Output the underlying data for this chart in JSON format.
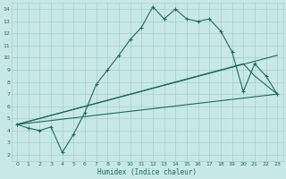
{
  "background_color": "#c8e8e8",
  "grid_color": "#a8cccc",
  "line_color": "#1a6b5a",
  "marker": "+",
  "xlabel": "Humidex (Indice chaleur)",
  "xlim": [
    -0.5,
    23.5
  ],
  "ylim": [
    1.5,
    14.5
  ],
  "yticks": [
    2,
    3,
    4,
    5,
    6,
    7,
    8,
    9,
    10,
    11,
    12,
    13,
    14
  ],
  "xticks": [
    0,
    1,
    2,
    3,
    4,
    5,
    6,
    7,
    8,
    9,
    10,
    11,
    12,
    13,
    14,
    15,
    16,
    17,
    18,
    19,
    20,
    21,
    22,
    23
  ],
  "line1_x": [
    0,
    1,
    2,
    3,
    4,
    5,
    6,
    7,
    8,
    9,
    10,
    11,
    12,
    13,
    14,
    15,
    16,
    17,
    18,
    19,
    20,
    21,
    22,
    23
  ],
  "line1_y": [
    4.5,
    4.2,
    4.0,
    4.3,
    2.2,
    3.7,
    5.5,
    7.8,
    9.0,
    10.2,
    11.5,
    12.5,
    14.2,
    13.2,
    14.0,
    13.2,
    13.0,
    13.2,
    12.2,
    10.5,
    7.2,
    9.5,
    8.5,
    7.0
  ],
  "line2_x": [
    0,
    23
  ],
  "line2_y": [
    4.5,
    10.2
  ],
  "line3_x": [
    0,
    20,
    21,
    23
  ],
  "line3_y": [
    4.5,
    9.5,
    8.5,
    7.0
  ],
  "line4_x": [
    0,
    23
  ],
  "line4_y": [
    4.5,
    7.0
  ]
}
